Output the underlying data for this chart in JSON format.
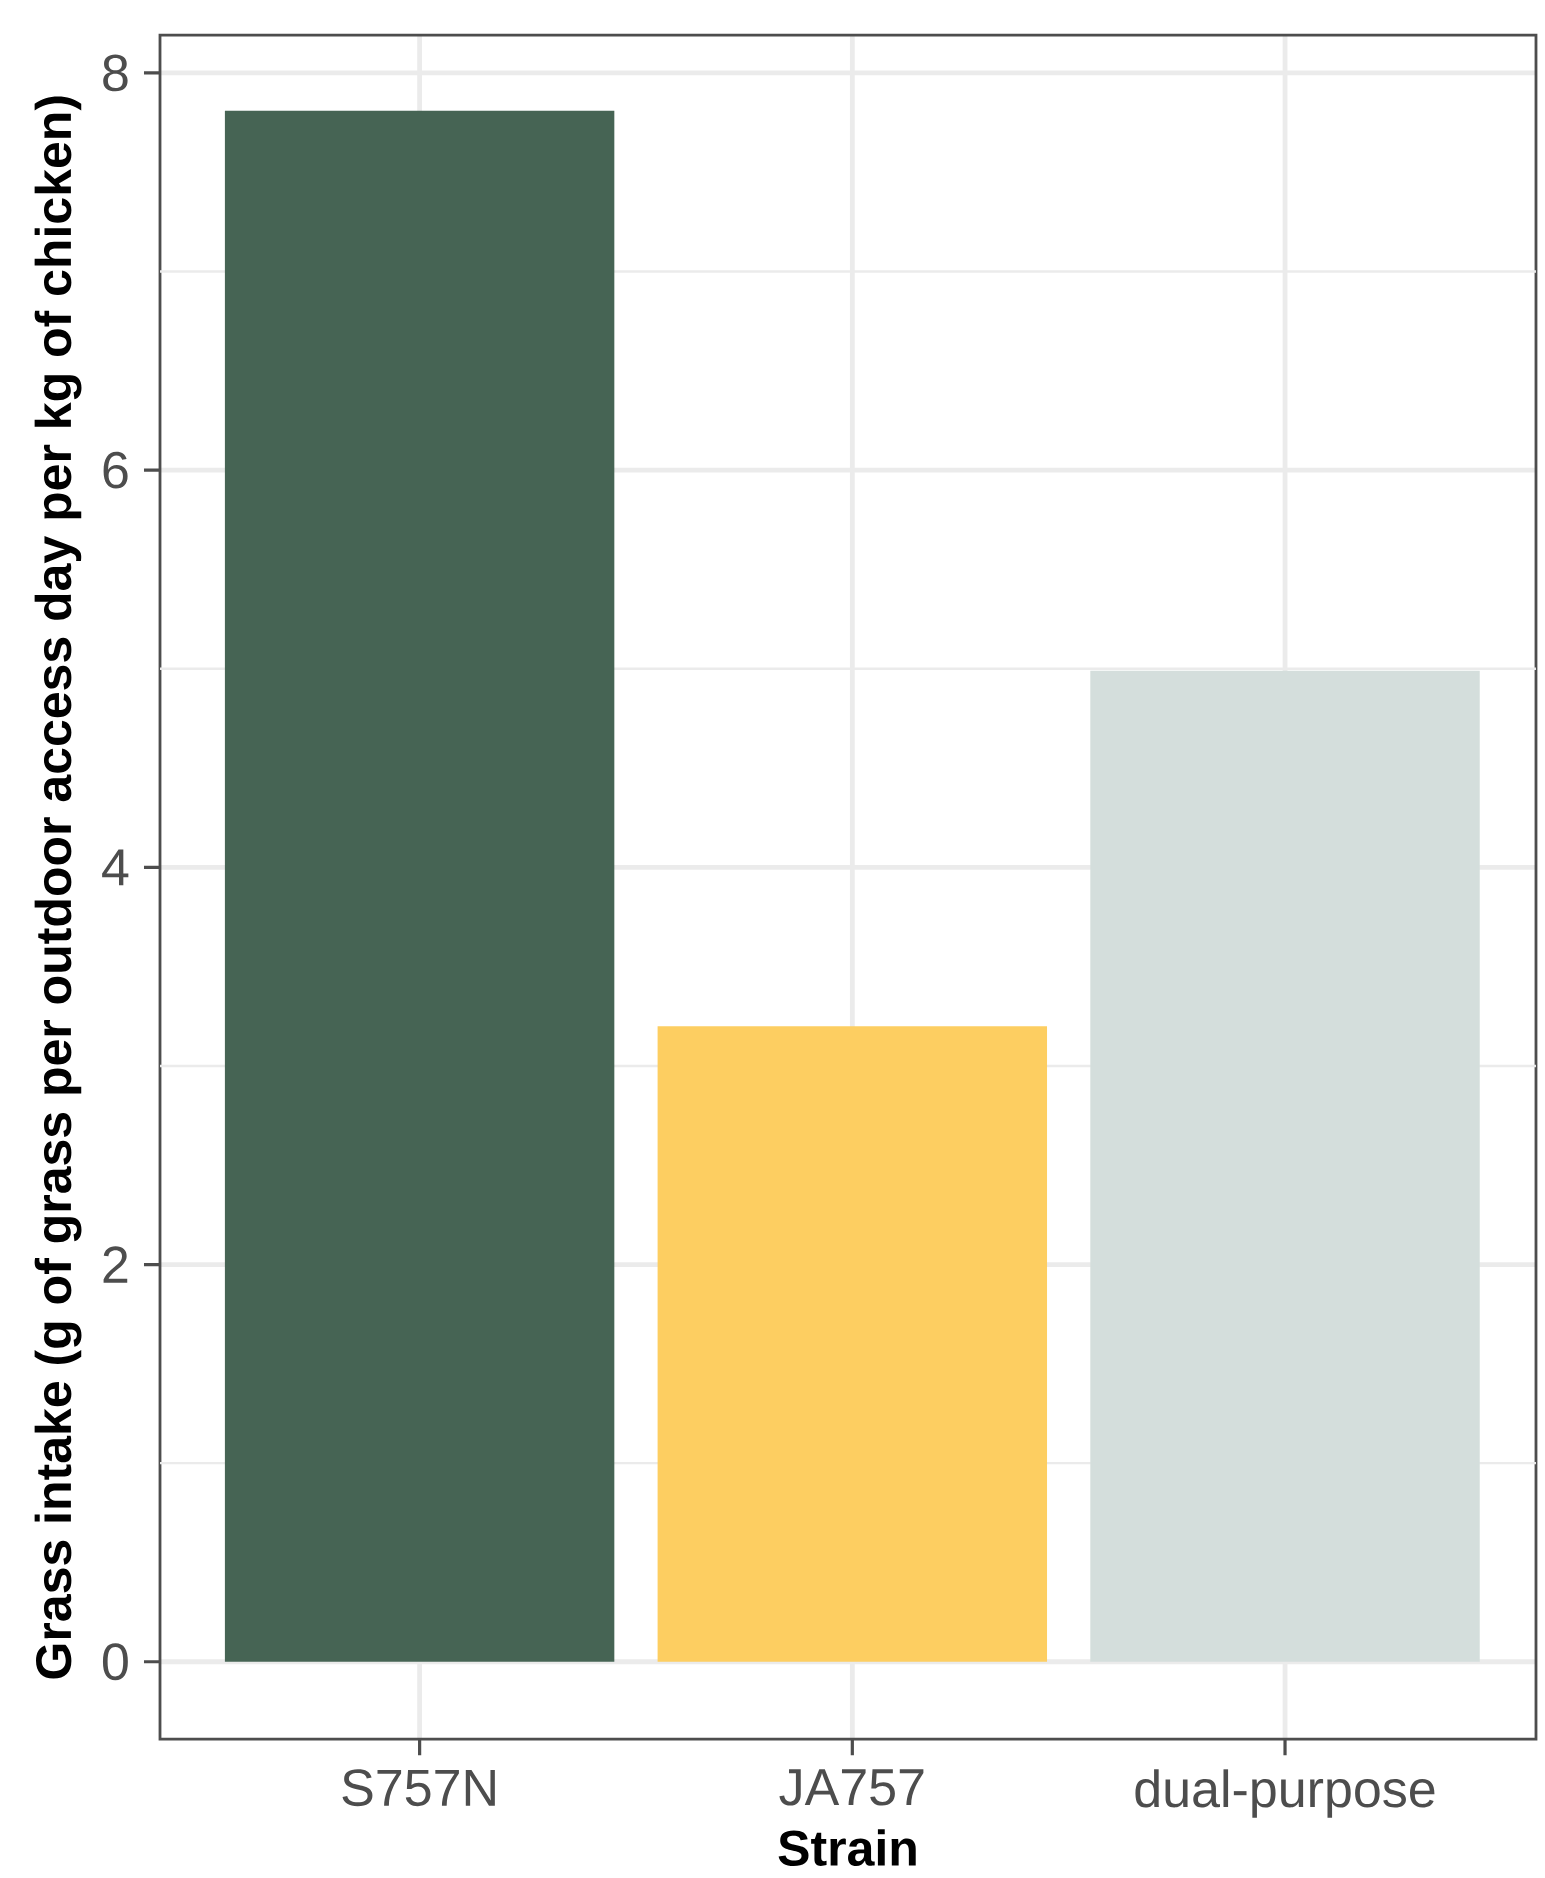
{
  "chart_data": {
    "type": "bar",
    "xlabel": "Strain",
    "ylabel": "Grass intake (g of grass per outdoor access day per kg of chicken)",
    "categories": [
      "S757N",
      "JA757",
      "dual-purpose"
    ],
    "values": [
      7.81,
      3.2,
      4.99
    ],
    "colors": [
      "#466454",
      "#fdce61",
      "#d4dedc"
    ],
    "ylim": [
      -0.39,
      8.19
    ],
    "yticks": [
      0,
      {
        "value": 1,
        "label": null
      },
      2,
      {
        "value": 3,
        "label": null
      },
      4,
      {
        "value": 5,
        "label": null
      },
      6,
      {
        "value": 7,
        "label": null
      },
      8
    ],
    "grid": true
  }
}
